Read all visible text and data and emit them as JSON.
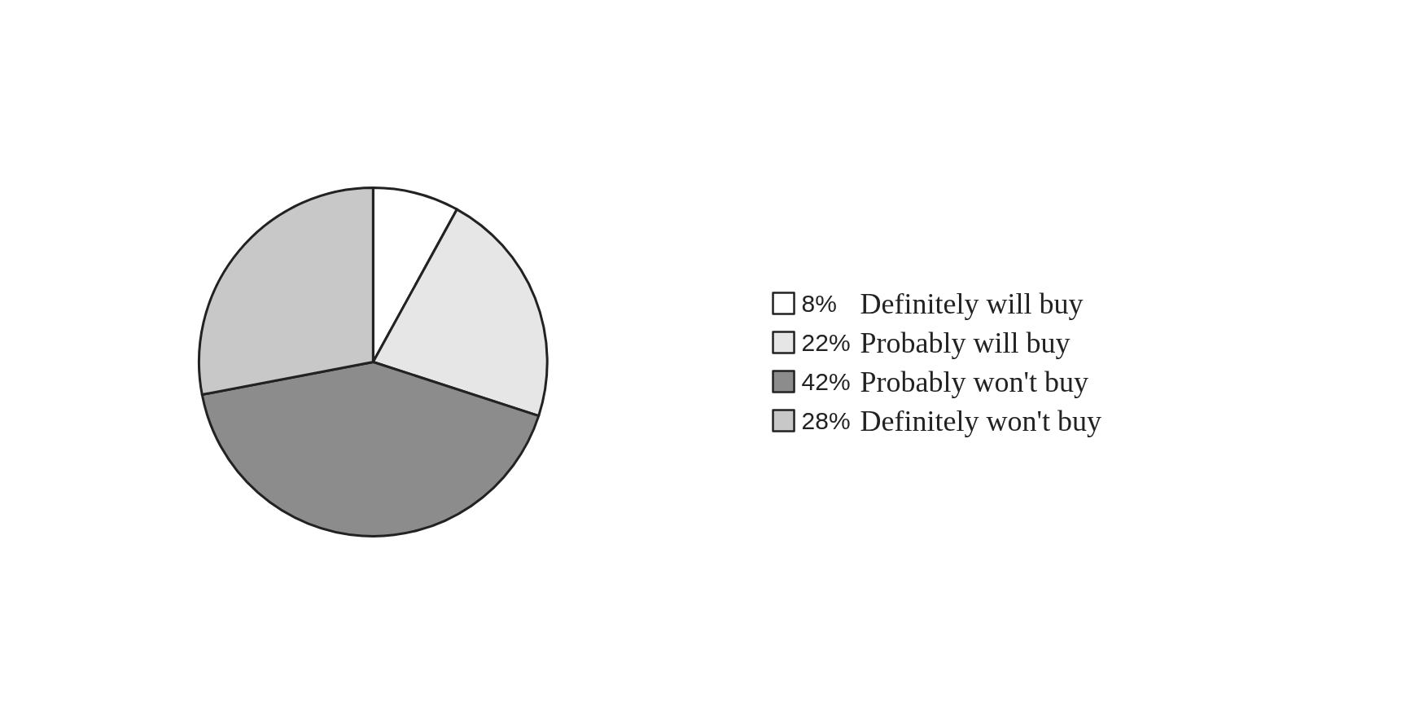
{
  "chart_data": {
    "type": "pie",
    "categories": [
      "Definitely will buy",
      "Probably will buy",
      "Probably won't buy",
      "Definitely won't buy"
    ],
    "values": [
      8,
      22,
      42,
      28
    ],
    "value_labels": [
      "8%",
      "22%",
      "42%",
      "28%"
    ],
    "colors": [
      "#ffffff",
      "#e6e6e6",
      "#8c8c8c",
      "#c8c8c8"
    ],
    "legend": "right"
  }
}
